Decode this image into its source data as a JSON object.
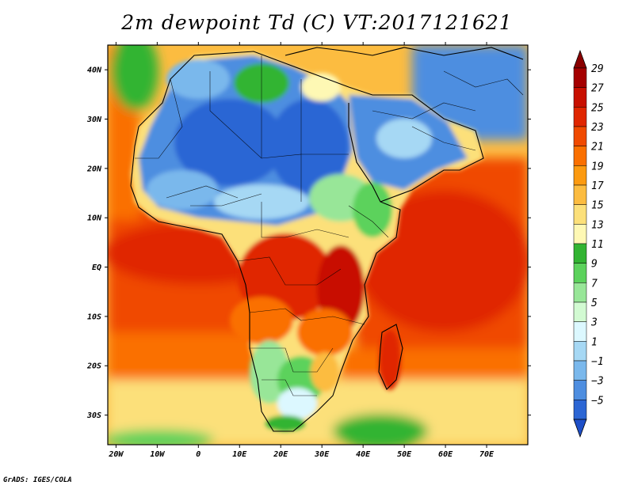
{
  "title": "2m dewpoint Td (C) VT:2017121621",
  "credit": "GrADS: IGES/COLA",
  "map": {
    "lon_range": [
      -22,
      80
    ],
    "lat_range": [
      -36,
      45
    ],
    "lat_ticks": [
      {
        "value": 40,
        "label": "40N"
      },
      {
        "value": 30,
        "label": "30N"
      },
      {
        "value": 20,
        "label": "20N"
      },
      {
        "value": 10,
        "label": "10N"
      },
      {
        "value": 0,
        "label": "EQ"
      },
      {
        "value": -10,
        "label": "10S"
      },
      {
        "value": -20,
        "label": "20S"
      },
      {
        "value": -30,
        "label": "30S"
      }
    ],
    "lon_ticks": [
      {
        "value": -20,
        "label": "20W"
      },
      {
        "value": -10,
        "label": "10W"
      },
      {
        "value": 0,
        "label": "0"
      },
      {
        "value": 10,
        "label": "10E"
      },
      {
        "value": 20,
        "label": "20E"
      },
      {
        "value": 30,
        "label": "30E"
      },
      {
        "value": 40,
        "label": "40E"
      },
      {
        "value": 50,
        "label": "50E"
      },
      {
        "value": 60,
        "label": "60E"
      },
      {
        "value": 70,
        "label": "70E"
      }
    ]
  },
  "colorbar": {
    "levels": [
      {
        "label": "29",
        "color": "#a50000"
      },
      {
        "label": "27",
        "color": "#c81000"
      },
      {
        "label": "25",
        "color": "#e02600"
      },
      {
        "label": "23",
        "color": "#f04a00"
      },
      {
        "label": "21",
        "color": "#fa7000"
      },
      {
        "label": "19",
        "color": "#fc9a10"
      },
      {
        "label": "17",
        "color": "#fcbc40"
      },
      {
        "label": "15",
        "color": "#fce07a"
      },
      {
        "label": "13",
        "color": "#fef8b4"
      },
      {
        "label": "11",
        "color": "#32b432"
      },
      {
        "label": "9",
        "color": "#5cd25c"
      },
      {
        "label": "7",
        "color": "#98e698"
      },
      {
        "label": "5",
        "color": "#d2fad2"
      },
      {
        "label": "3",
        "color": "#dcf8ff"
      },
      {
        "label": "1",
        "color": "#a6d8f4"
      },
      {
        "label": "−1",
        "color": "#7ab8ec"
      },
      {
        "label": "−3",
        "color": "#4e8ee0"
      },
      {
        "label": "−5",
        "color": "#2c66d4"
      }
    ],
    "under_color": "#1e4fc8",
    "over_color": "#8a0000"
  }
}
